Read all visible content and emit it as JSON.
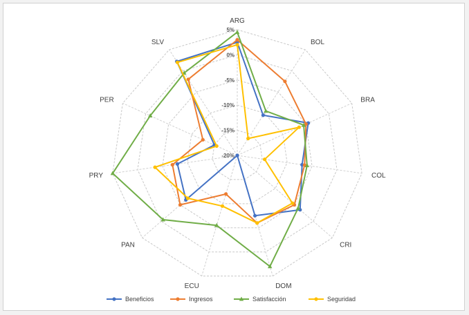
{
  "chart_data": {
    "type": "radar",
    "categories": [
      "ARG",
      "BOL",
      "BRA",
      "COL",
      "CRI",
      "DOM",
      "ECU",
      "PAN",
      "PRY",
      "PER",
      "SLV"
    ],
    "r_ticks": [
      5,
      0,
      -5,
      -10,
      -15,
      -20
    ],
    "r_tick_labels": [
      "5%",
      "0%",
      "-5%",
      "-10%",
      "-15%",
      "-20%"
    ],
    "rlim": [
      -20,
      5
    ],
    "grid": true,
    "legend": "bottom",
    "series": [
      {
        "name": "Beneficios",
        "color": "#4472c4",
        "marker": "circle",
        "values": [
          2.5,
          -10.5,
          -4.5,
          -7,
          -3.5,
          -7.5,
          -20,
          -6.5,
          -8,
          -15,
          2.2
        ]
      },
      {
        "name": "Ingresos",
        "color": "#ed7d31",
        "marker": "circle",
        "values": [
          3,
          -2.5,
          -5,
          -6.5,
          -5,
          -6,
          -12,
          -5,
          -7,
          -12.5,
          -2
        ]
      },
      {
        "name": "Satisfacción",
        "color": "#70ad47",
        "marker": "triangle",
        "values": [
          4.5,
          -9.5,
          -5.5,
          -6,
          -4,
          3,
          -5.5,
          -0.5,
          5,
          -1,
          -0.5
        ]
      },
      {
        "name": "Seguridad",
        "color": "#ffc000",
        "marker": "circle",
        "values": [
          2,
          -16,
          -6.5,
          -14.5,
          -5.5,
          -6,
          -9.5,
          -7,
          -3.5,
          -15.5,
          2
        ]
      }
    ]
  }
}
